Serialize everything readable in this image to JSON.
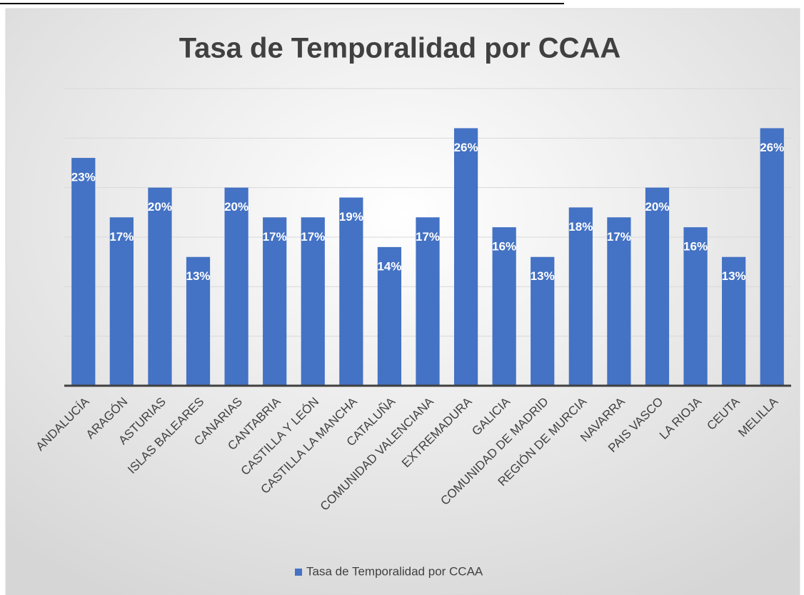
{
  "chart_data": {
    "type": "bar",
    "title": "Tasa de Temporalidad por CCAA",
    "categories": [
      "ANDALUCÍA",
      "ARAGÓN",
      "ASTURIAS",
      "ISLAS BALEARES",
      "CANARIAS",
      "CANTABRIA",
      "CASTILLA Y LEÓN",
      "CASTILLA LA MANCHA",
      "CATALUÑA",
      "COMUNIDAD VALENCIANA",
      "EXTREMADURA",
      "GALICIA",
      "COMUNIDAD DE MADRID",
      "REGIÓN DE MURCIA",
      "NAVARRA",
      "PAIS VASCO",
      "LA RIOJA",
      "CEUTA",
      "MELILLA"
    ],
    "series": [
      {
        "name": "Tasa de Temporalidad por CCAA",
        "color": "#4472c4",
        "values": [
          23,
          17,
          20,
          13,
          20,
          17,
          17,
          19,
          14,
          17,
          26,
          16,
          13,
          18,
          17,
          20,
          16,
          13,
          26
        ],
        "value_labels": [
          "23%",
          "17%",
          "20%",
          "13%",
          "20%",
          "17%",
          "17%",
          "19%",
          "14%",
          "17%",
          "26%",
          "16%",
          "13%",
          "18%",
          "17%",
          "20%",
          "16%",
          "13%",
          "26%"
        ]
      }
    ],
    "ylim": [
      0,
      30
    ],
    "yticks": [
      0,
      5,
      10,
      15,
      20,
      25,
      30
    ],
    "grid": true,
    "legend": "bottom"
  }
}
